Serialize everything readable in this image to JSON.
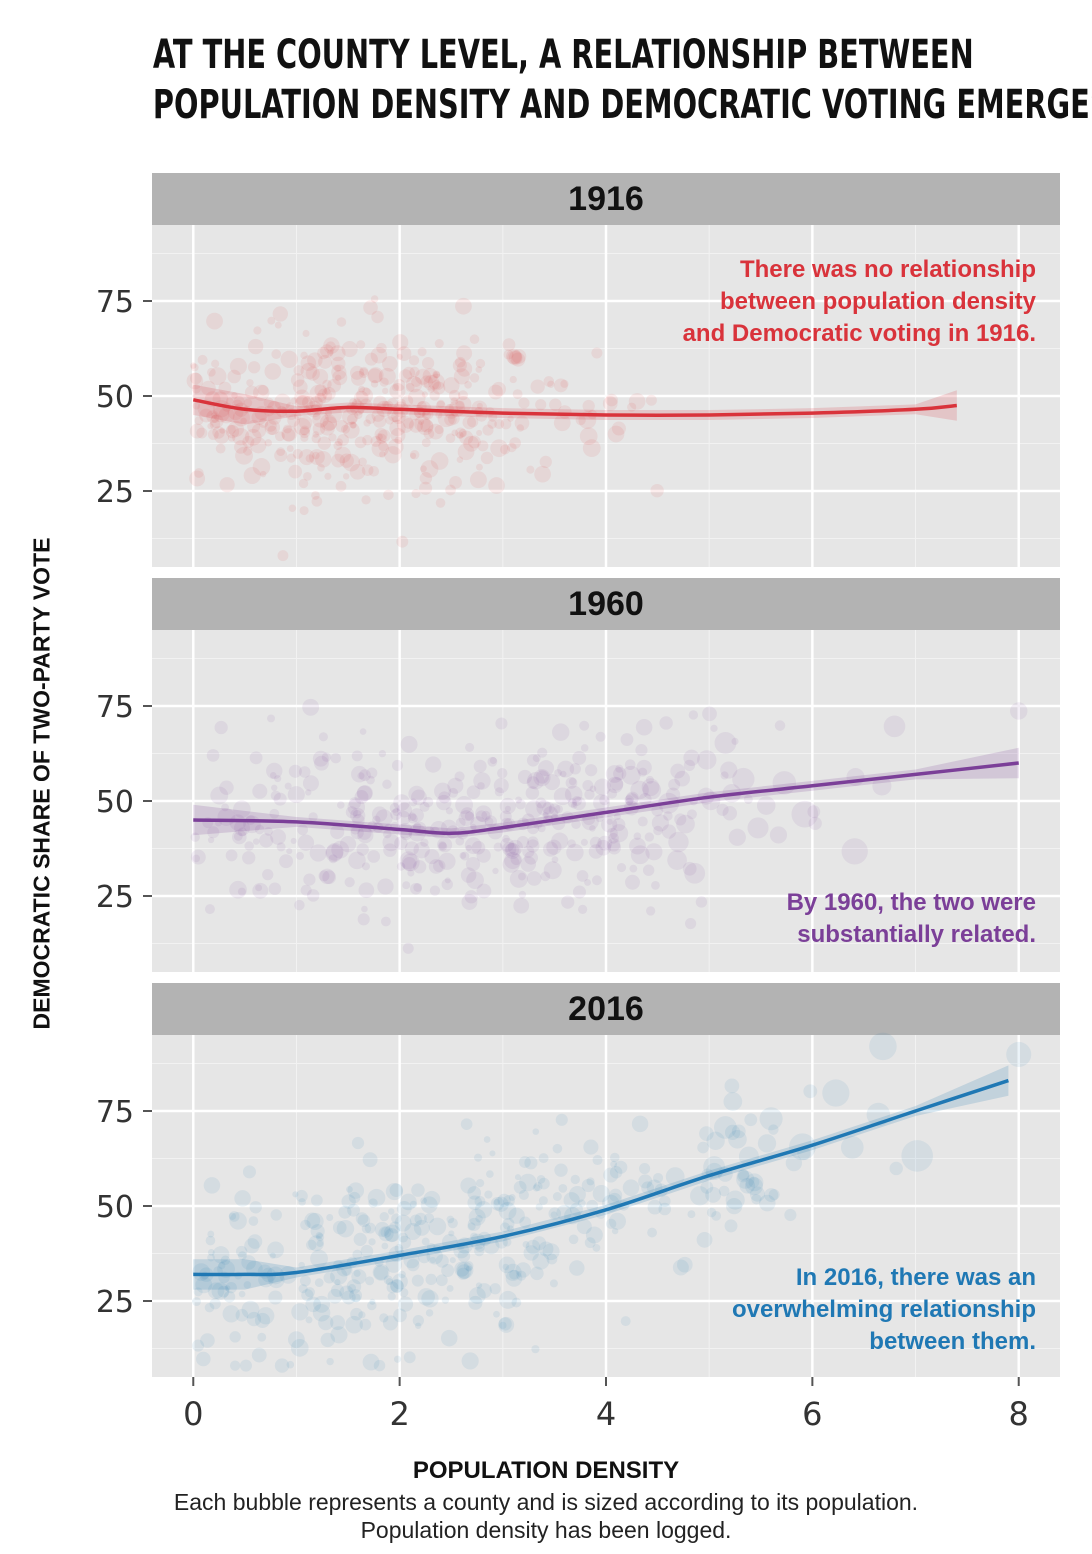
{
  "header": {
    "title_line1": "AT THE COUNTY LEVEL, A RELATIONSHIP BETWEEN",
    "title_line2": "POPULATION DENSITY AND DEMOCRATIC VOTING EMERGES"
  },
  "footer": {
    "xlabel": "POPULATION DENSITY",
    "note_line1": "Each bubble represents a county and is sized according to its population.",
    "note_line2": "Population density has been logged."
  },
  "colors": {
    "1916": "#d9333b",
    "1960": "#7b3f98",
    "2016": "#1f78b4",
    "panel_bg": "#e6e6e6",
    "strip_bg": "#b3b3b3"
  },
  "chart_data": {
    "type": "scatter",
    "ylabel": "DEMOCRATIC SHARE OF TWO-PARTY VOTE",
    "xlabel": "POPULATION DENSITY",
    "xlim": [
      -0.4,
      8.4
    ],
    "ylim": [
      5,
      95
    ],
    "x_ticks": [
      0,
      2,
      4,
      6,
      8
    ],
    "y_ticks": [
      25,
      50,
      75
    ],
    "grid": true,
    "panels": [
      {
        "name": "1916",
        "color": "#d9333b",
        "annotation": [
          "There was no relationship",
          "between population density",
          "and Democratic voting in 1916."
        ],
        "trend": {
          "x": [
            0,
            0.5,
            1,
            1.5,
            2,
            3,
            4,
            5,
            6,
            7,
            7.4
          ],
          "y": [
            49,
            46.5,
            46,
            47,
            46.5,
            45.5,
            45,
            45,
            45.5,
            46.5,
            47.5
          ]
        },
        "points_center": [
          1.5,
          47
        ],
        "points_spread": [
          1.1,
          10
        ]
      },
      {
        "name": "1960",
        "color": "#7b3f98",
        "annotation": [
          "By 1960, the two were",
          "substantially related."
        ],
        "trend": {
          "x": [
            0,
            1,
            2,
            2.5,
            3,
            4,
            5,
            6,
            7,
            8
          ],
          "y": [
            45,
            44.5,
            42.5,
            41.5,
            43,
            47,
            51,
            54,
            57,
            60
          ]
        },
        "points_center": [
          2.6,
          44
        ],
        "points_spread": [
          1.6,
          11
        ]
      },
      {
        "name": "2016",
        "color": "#1f78b4",
        "annotation": [
          "In 2016, there was an",
          "overwhelming relationship",
          "between them."
        ],
        "trend": {
          "x": [
            0,
            0.5,
            1,
            2,
            3,
            4,
            5,
            6,
            7,
            7.9
          ],
          "y": [
            32,
            32,
            32.5,
            37,
            42,
            49,
            58,
            66,
            75,
            83
          ]
        },
        "points_center": [
          2.4,
          36
        ],
        "points_spread": [
          1.7,
          12
        ]
      }
    ]
  }
}
